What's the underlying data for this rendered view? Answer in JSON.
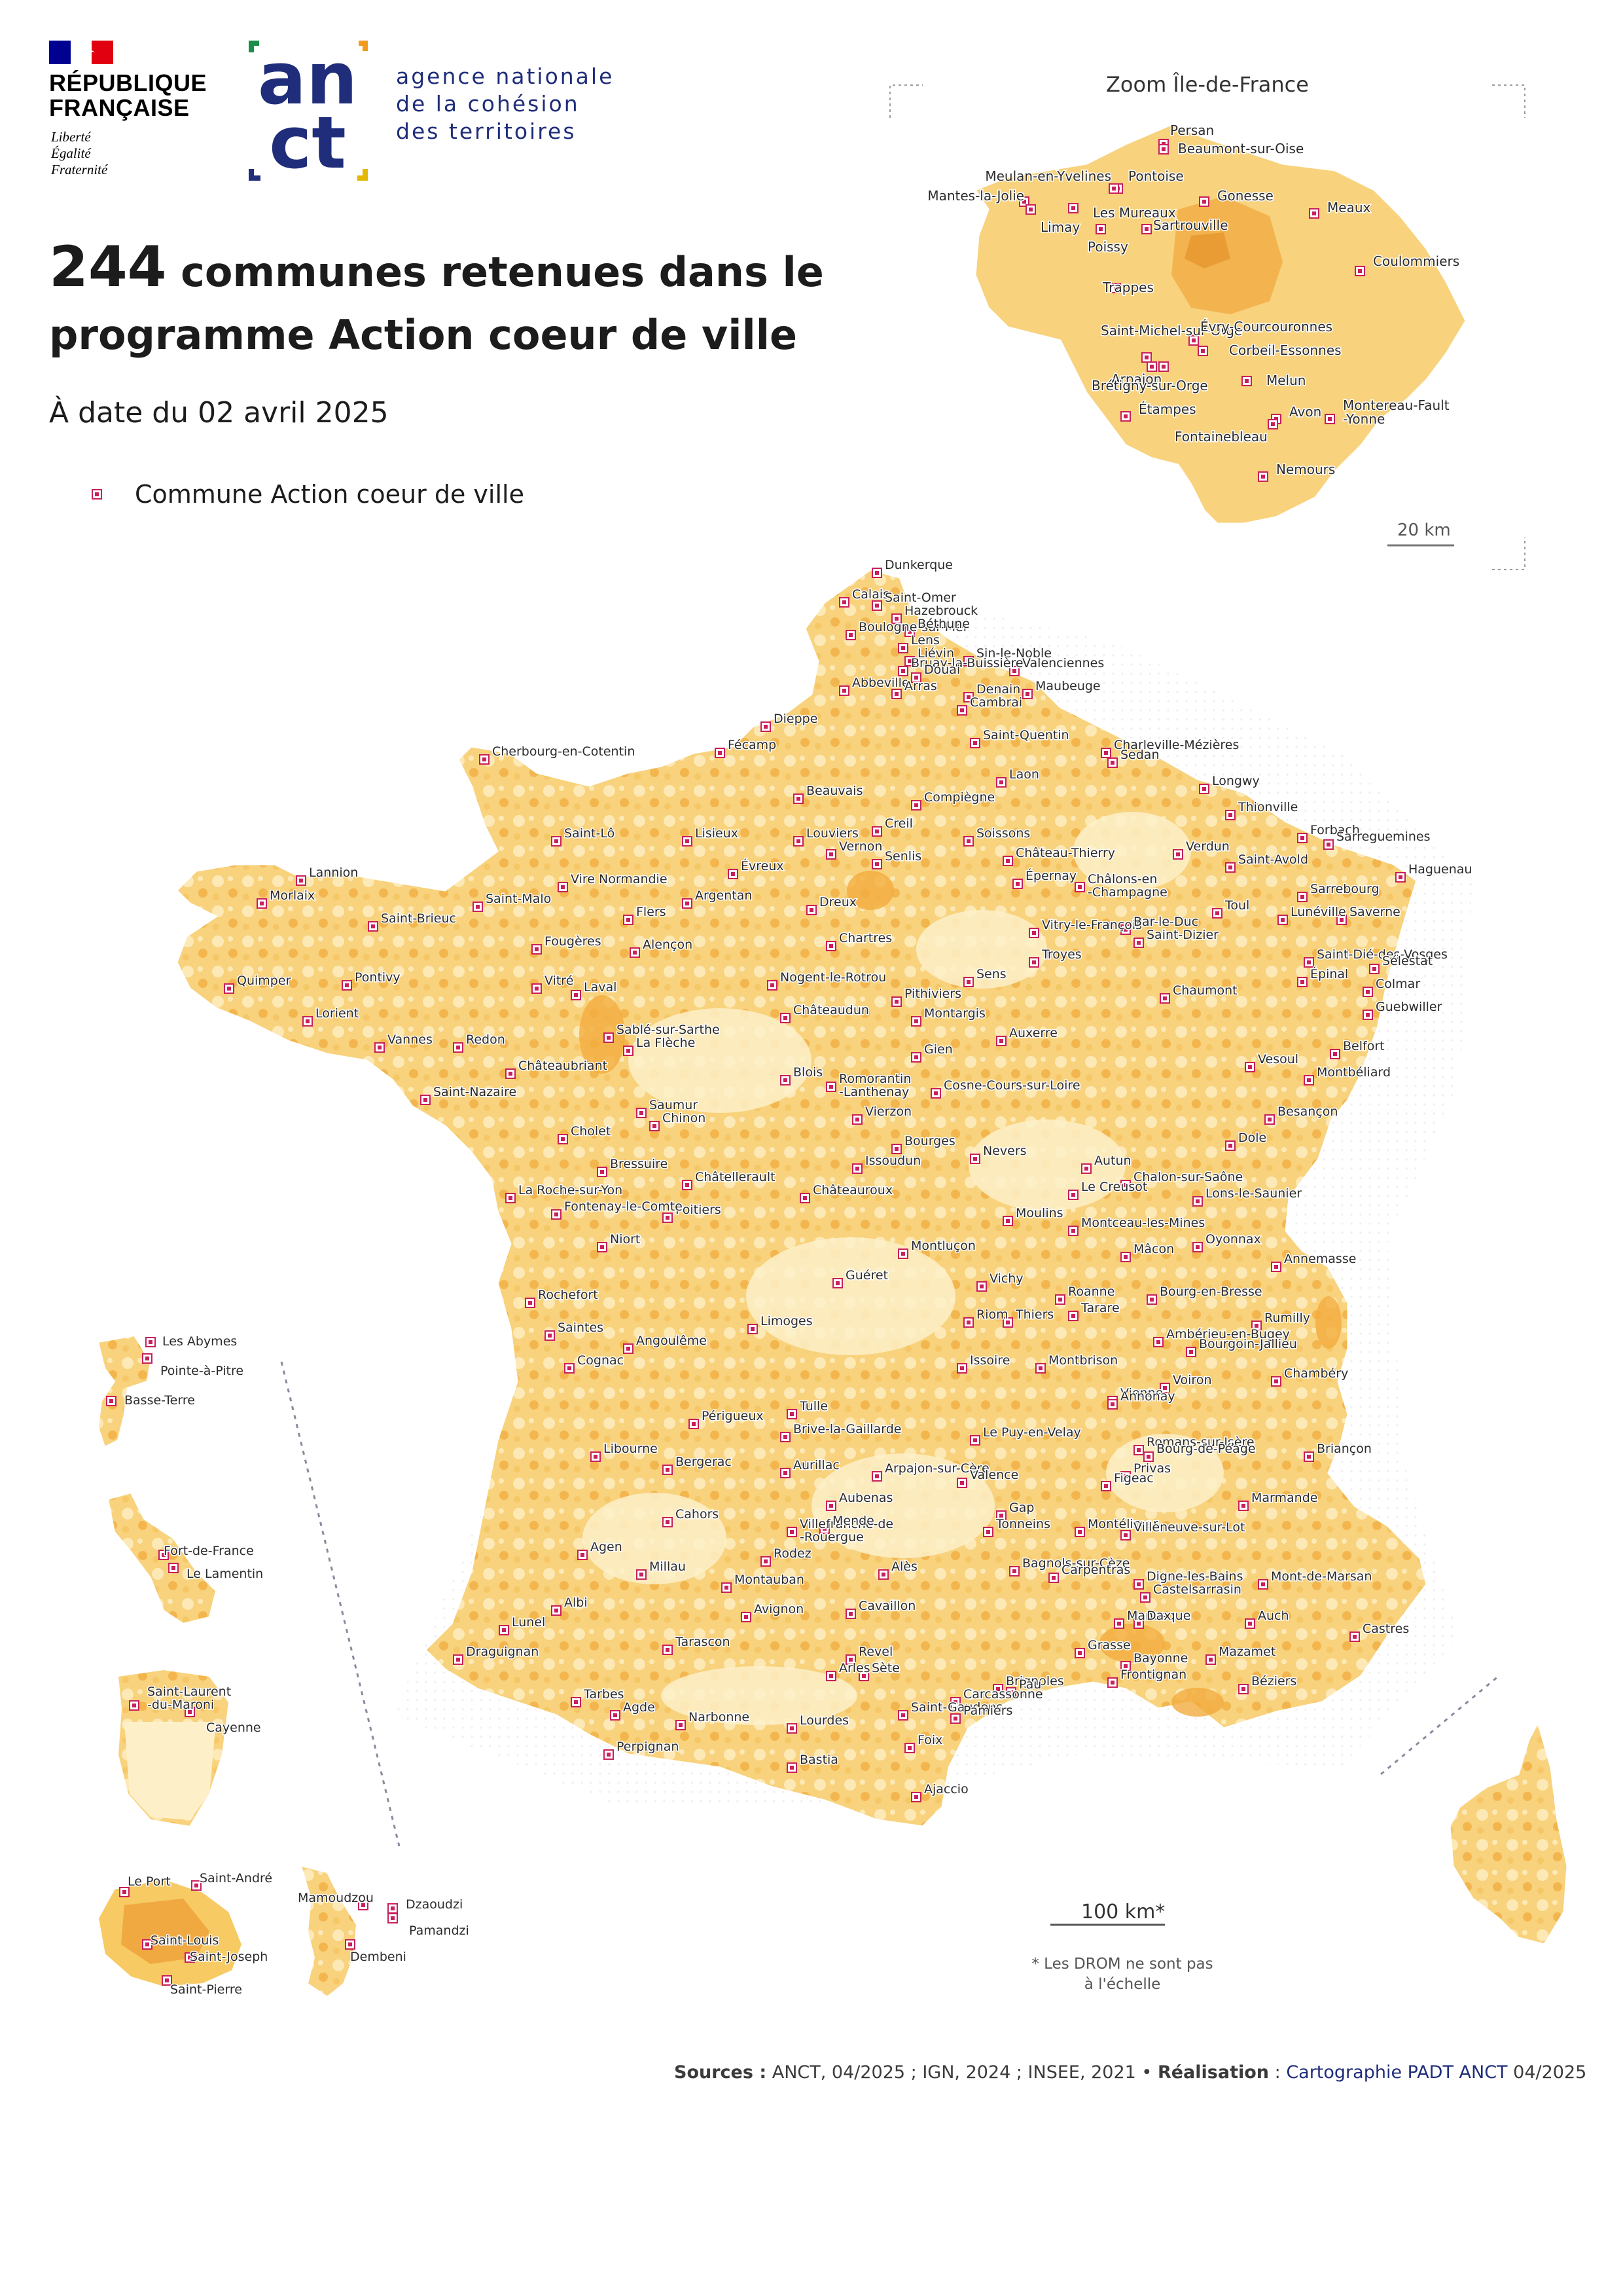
{
  "header": {
    "republique": "RÉPUBLIQUE\nFRANÇAISE",
    "motto": "Liberté\nÉgalité\nFraternité",
    "anct_logo_letters": [
      "an",
      "ct"
    ],
    "anct_name": "agence nationale\nde la cohésion\ndes territoires"
  },
  "title": {
    "number": "244",
    "rest": " communes retenues dans le programme Action coeur de ville"
  },
  "date": "À date du 02 avril 2025",
  "legend": {
    "label": "Commune Action coeur de ville",
    "color": "#c8205c"
  },
  "colors": {
    "land": "#f8d27c",
    "land_light": "#fde9b6",
    "land_dark": "#f2b24a",
    "border": "#ffffff",
    "marker": "#c8205c"
  },
  "zoom": {
    "title": "Zoom Île-de-France",
    "scale": "20 km",
    "communes": [
      "Persan",
      "Beaumont-sur-Oise",
      "Meulan-en-Yvelines",
      "Pontoise",
      "Mantes-la-Jolie",
      "Les Mureaux",
      "Gonesse",
      "Meaux",
      "Limay",
      "Sartrouville",
      "Poissy",
      "Coulommiers",
      "Trappes",
      "Saint-Michel-sur-Orge",
      "Évry-Courcouronnes",
      "Corbeil-Essonnes",
      "Arpajon",
      "Brétigny-sur-Orge",
      "Melun",
      "Étampes",
      "Avon",
      "Montereau-Fault\n-Yonne",
      "Fontainebleau",
      "Nemours"
    ]
  },
  "france": {
    "scale": "100 km*",
    "note": "* Les DROM ne sont pas\nà l'échelle",
    "communes": [
      "Dunkerque",
      "Calais",
      "Saint-Omer",
      "Hazebrouck",
      "Boulogne-sur-Mer",
      "Béthune",
      "Lens",
      "Liévin",
      "Sin-le-Noble",
      "Valenciennes",
      "Bruay-la-Buissière",
      "Douai",
      "Abbeville",
      "Arras",
      "Denain",
      "Maubeuge",
      "Cambrai",
      "Dieppe",
      "Fécamp",
      "Cherbourg-en-Cotentin",
      "Saint-Quentin",
      "Charleville-Mézières",
      "Sedan",
      "Laon",
      "Longwy",
      "Beauvais",
      "Compiègne",
      "Thionville",
      "Creil",
      "Forbach",
      "Saint-Lô",
      "Lisieux",
      "Louviers",
      "Soissons",
      "Sarreguemines",
      "Vernon",
      "Château-Thierry",
      "Verdun",
      "Senlis",
      "Saint-Avold",
      "Évreux",
      "Lannion",
      "Vire Normandie",
      "Châlons-en\n-Champagne",
      "Haguenau",
      "Morlaix",
      "Argentan",
      "Épernay",
      "Sarrebourg",
      "Saint-Malo",
      "Dreux",
      "Toul",
      "Flers",
      "Lunéville",
      "Saint-Brieuc",
      "Saverne",
      "Vitry-le-François",
      "Bar-le-Duc",
      "Fougères",
      "Alençon",
      "Chartres",
      "Saint-Dizier",
      "Saint-Dié-des-Vosges",
      "Sélestat",
      "Troyes",
      "Quimper",
      "Pontivy",
      "Vitré",
      "Nogent-le-Rotrou",
      "Sens",
      "Épinal",
      "Colmar",
      "Laval",
      "Pithiviers",
      "Chaumont",
      "Lorient",
      "Montargis",
      "Guebwiller",
      "Châteaudun",
      "Vannes",
      "Sablé-sur-Sarthe",
      "Redon",
      "La Flèche",
      "Auxerre",
      "Belfort",
      "Gien",
      "Vesoul",
      "Châteaubriant",
      "Blois",
      "Montbéliard",
      "Romorantin\n-Lanthenay",
      "Cosne-Cours-sur-Loire",
      "Saint-Nazaire",
      "Saumur",
      "Vierzon",
      "Besançon",
      "Chinon",
      "Dole",
      "Cholet",
      "Bourges",
      "Nevers",
      "Autun",
      "Bressuire",
      "Issoudun",
      "Chalon-sur-Saône",
      "Châtellerault",
      "Le Creusot",
      "La Roche-sur-Yon",
      "Châteauroux",
      "Lons-le-Saunier",
      "Poitiers",
      "Fontenay-le-Comte",
      "Moulins",
      "Montceau-les-Mines",
      "Niort",
      "Oyonnax",
      "Montluçon",
      "Mâcon",
      "Annemasse",
      "Guéret",
      "Vichy",
      "Rochefort",
      "Roanne",
      "Bourg-en-Bresse",
      "Limoges",
      "Riom",
      "Thiers",
      "Tarare",
      "Rumilly",
      "Saintes",
      "Ambérieu-en-Bugey",
      "Angoulême",
      "Bourgoin-Jallieu",
      "Cognac",
      "Issoire",
      "Montbrison",
      "Chambéry",
      "Voiron",
      "Vienne",
      "Annonay",
      "Tulle",
      "Périgueux",
      "Brive-la-Gaillarde",
      "Le Puy-en-Velay",
      "Romans-sur-Isère",
      "Bourg-de-Péage",
      "Libourne",
      "Briançon",
      "Bergerac",
      "Aurillac",
      "Arpajon-sur-Cère",
      "Valence",
      "Privas",
      "Figeac",
      "Aubenas",
      "Gap",
      "Marmande",
      "Cahors",
      "Villefranche-de\n-Rouergue",
      "Mende",
      "Montélimar",
      "Tonneins",
      "Villeneuve-sur-Lot",
      "Agen",
      "Rodez",
      "Millau",
      "Alès",
      "Bagnols-sur-Cèze",
      "Carpentras",
      "Digne-les-Bains",
      "Castelsarrasin",
      "Mont-de-Marsan",
      "Montauban",
      "Albi",
      "Avignon",
      "Cavaillon",
      "Manosque",
      "Dax",
      "Auch",
      "Lunel",
      "Tarascon",
      "Grasse",
      "Bayonne",
      "Castres",
      "Draguignan",
      "Revel",
      "Mazamet",
      "Arles",
      "Sète",
      "Frontignan",
      "Brignoles",
      "Pau",
      "Béziers",
      "Tarbes",
      "Carcassonne",
      "Agde",
      "Saint-Gaudens",
      "Pamiers",
      "Narbonne",
      "Lourdes",
      "Foix",
      "Perpignan",
      "Bastia",
      "Ajaccio"
    ]
  },
  "drom": {
    "guadeloupe": [
      "Les Abymes",
      "Pointe-à-Pitre",
      "Basse-Terre"
    ],
    "martinique": [
      "Fort-de-France",
      "Le Lamentin"
    ],
    "guyane": [
      "Saint-Laurent\n-du-Maroni",
      "Cayenne"
    ],
    "reunion": [
      "Le Port",
      "Saint-André",
      "Saint-Louis",
      "Saint-Joseph",
      "Saint-Pierre"
    ],
    "mayotte": [
      "Mamoudzou",
      "Dzaoudzi",
      "Pamandzi",
      "Dembeni"
    ]
  },
  "sources": {
    "label": "Sources :",
    "text": "ANCT, 04/2025 ; IGN, 2024 ; INSEE, 2021 •",
    "realisation": "Réalisation",
    "sep": ":",
    "credit": "Cartographie PADT ANCT",
    "credit_date": "04/2025"
  }
}
